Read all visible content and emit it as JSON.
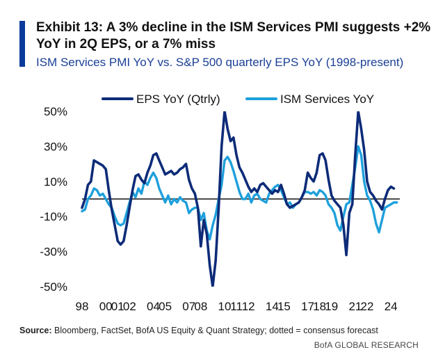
{
  "header": {
    "title": "Exhibit 13: A 3% decline in the ISM Services PMI suggests +2% YoY in 2Q EPS, or a 7% miss",
    "subtitle": "ISM Services PMI YoY vs. S&P 500 quarterly EPS YoY (1998-present)"
  },
  "footer": {
    "source_label": "Source:",
    "source_text": " Bloomberg, FactSet, BofA US Equity & Quant Strategy; dotted = consensus forecast",
    "brand": "BofA GLOBAL RESEARCH"
  },
  "colors": {
    "eps": "#0d2b78",
    "ism": "#1ea0dc",
    "zero": "#111111",
    "accent": "#0a3a9a"
  },
  "chart_data": {
    "type": "line",
    "title": "",
    "xlabel": "",
    "ylabel": "",
    "xlim": [
      1998.0,
      2024.75
    ],
    "ylim": [
      -50,
      50
    ],
    "yticks": [
      50,
      30,
      10,
      -10,
      -30,
      -50
    ],
    "ytick_labels": [
      "50%",
      "30%",
      "10%",
      "-10%",
      "-30%",
      "-50%"
    ],
    "xticks": [
      1998,
      2000,
      2001,
      2002,
      2004,
      2005,
      2007,
      2008,
      2010,
      2011,
      2012,
      2014,
      2015,
      2017,
      2018,
      2019,
      2021,
      2022,
      2024
    ],
    "xtick_labels": [
      "98",
      "00",
      "01",
      "02",
      "04",
      "05",
      "07",
      "08",
      "10",
      "11",
      "12",
      "14",
      "15",
      "17",
      "18",
      "19",
      "21",
      "22",
      "24"
    ],
    "zero_line": true,
    "grid": false,
    "legend": "top",
    "series": [
      {
        "name": "EPS YoY (Qtrly)",
        "color": "#0d2b78",
        "points": [
          [
            1998.0,
            -5
          ],
          [
            1998.25,
            0
          ],
          [
            1998.5,
            8
          ],
          [
            1998.75,
            10
          ],
          [
            1999.0,
            22
          ],
          [
            1999.25,
            21
          ],
          [
            1999.5,
            20
          ],
          [
            1999.75,
            19
          ],
          [
            2000.0,
            17
          ],
          [
            2000.25,
            5
          ],
          [
            2000.5,
            -6
          ],
          [
            2000.75,
            -15
          ],
          [
            2001.0,
            -24
          ],
          [
            2001.25,
            -26
          ],
          [
            2001.5,
            -24
          ],
          [
            2001.75,
            -15
          ],
          [
            2002.0,
            -5
          ],
          [
            2002.25,
            5
          ],
          [
            2002.5,
            13
          ],
          [
            2002.75,
            14
          ],
          [
            2003.0,
            11
          ],
          [
            2003.25,
            9
          ],
          [
            2003.5,
            15
          ],
          [
            2003.75,
            19
          ],
          [
            2004.0,
            25
          ],
          [
            2004.25,
            26
          ],
          [
            2004.5,
            22
          ],
          [
            2004.75,
            18
          ],
          [
            2005.0,
            14
          ],
          [
            2005.25,
            15
          ],
          [
            2005.5,
            16
          ],
          [
            2005.75,
            14
          ],
          [
            2006.0,
            15
          ],
          [
            2006.25,
            17
          ],
          [
            2006.5,
            18
          ],
          [
            2006.75,
            20
          ],
          [
            2007.0,
            11
          ],
          [
            2007.25,
            6
          ],
          [
            2007.5,
            3
          ],
          [
            2007.75,
            -5
          ],
          [
            2008.0,
            -27
          ],
          [
            2008.25,
            -12
          ],
          [
            2008.5,
            -20
          ],
          [
            2008.75,
            -38
          ],
          [
            2009.0,
            -50
          ],
          [
            2009.25,
            -35
          ],
          [
            2009.5,
            -5
          ],
          [
            2009.75,
            30
          ],
          [
            2010.0,
            50
          ],
          [
            2010.25,
            40
          ],
          [
            2010.5,
            33
          ],
          [
            2010.75,
            35
          ],
          [
            2011.0,
            25
          ],
          [
            2011.25,
            18
          ],
          [
            2011.5,
            15
          ],
          [
            2011.75,
            11
          ],
          [
            2012.0,
            7
          ],
          [
            2012.25,
            4
          ],
          [
            2012.5,
            6
          ],
          [
            2012.75,
            4
          ],
          [
            2013.0,
            8
          ],
          [
            2013.25,
            9
          ],
          [
            2013.5,
            7
          ],
          [
            2013.75,
            5
          ],
          [
            2014.0,
            3
          ],
          [
            2014.25,
            5
          ],
          [
            2014.5,
            4
          ],
          [
            2014.75,
            8
          ],
          [
            2015.0,
            3
          ],
          [
            2015.25,
            -3
          ],
          [
            2015.5,
            -5
          ],
          [
            2015.75,
            -4
          ],
          [
            2016.0,
            -3
          ],
          [
            2016.25,
            -2
          ],
          [
            2016.5,
            1
          ],
          [
            2016.75,
            5
          ],
          [
            2017.0,
            15
          ],
          [
            2017.25,
            12
          ],
          [
            2017.5,
            10
          ],
          [
            2017.75,
            15
          ],
          [
            2018.0,
            25
          ],
          [
            2018.25,
            26
          ],
          [
            2018.5,
            22
          ],
          [
            2018.75,
            11
          ],
          [
            2019.0,
            2
          ],
          [
            2019.25,
            -1
          ],
          [
            2019.5,
            -3
          ],
          [
            2019.75,
            -5
          ],
          [
            2020.0,
            -15
          ],
          [
            2020.25,
            -32
          ],
          [
            2020.5,
            -8
          ],
          [
            2020.75,
            -3
          ],
          [
            2021.0,
            25
          ],
          [
            2021.25,
            50
          ],
          [
            2021.5,
            40
          ],
          [
            2021.75,
            28
          ],
          [
            2022.0,
            10
          ],
          [
            2022.25,
            4
          ],
          [
            2022.5,
            2
          ],
          [
            2022.75,
            -1
          ],
          [
            2023.0,
            -3
          ],
          [
            2023.25,
            -6
          ],
          [
            2023.5,
            0
          ],
          [
            2023.75,
            5
          ],
          [
            2024.0,
            7
          ],
          [
            2024.25,
            6
          ]
        ]
      },
      {
        "name": "ISM Services YoY",
        "color": "#1ea0dc",
        "points": [
          [
            1998.0,
            -7
          ],
          [
            1998.25,
            -6
          ],
          [
            1998.5,
            0
          ],
          [
            1998.75,
            2
          ],
          [
            1999.0,
            6
          ],
          [
            1999.25,
            5
          ],
          [
            1999.5,
            2
          ],
          [
            1999.75,
            3
          ],
          [
            2000.0,
            0
          ],
          [
            2000.25,
            -3
          ],
          [
            2000.5,
            -5
          ],
          [
            2000.75,
            -10
          ],
          [
            2001.0,
            -14
          ],
          [
            2001.25,
            -15
          ],
          [
            2001.5,
            -14
          ],
          [
            2001.75,
            -8
          ],
          [
            2002.0,
            -2
          ],
          [
            2002.25,
            4
          ],
          [
            2002.5,
            1
          ],
          [
            2002.75,
            6
          ],
          [
            2003.0,
            3
          ],
          [
            2003.25,
            10
          ],
          [
            2003.5,
            8
          ],
          [
            2003.75,
            12
          ],
          [
            2004.0,
            15
          ],
          [
            2004.25,
            12
          ],
          [
            2004.5,
            6
          ],
          [
            2004.75,
            2
          ],
          [
            2005.0,
            -2
          ],
          [
            2005.25,
            2
          ],
          [
            2005.5,
            -3
          ],
          [
            2005.75,
            0
          ],
          [
            2006.0,
            -2
          ],
          [
            2006.25,
            1
          ],
          [
            2006.5,
            -1
          ],
          [
            2006.75,
            -2
          ],
          [
            2007.0,
            -8
          ],
          [
            2007.25,
            -6
          ],
          [
            2007.5,
            -5
          ],
          [
            2007.75,
            -5
          ],
          [
            2008.0,
            -12
          ],
          [
            2008.25,
            -8
          ],
          [
            2008.5,
            -18
          ],
          [
            2008.75,
            -23
          ],
          [
            2009.0,
            -15
          ],
          [
            2009.25,
            -9
          ],
          [
            2009.5,
            0
          ],
          [
            2009.75,
            8
          ],
          [
            2010.0,
            22
          ],
          [
            2010.25,
            24
          ],
          [
            2010.5,
            21
          ],
          [
            2010.75,
            16
          ],
          [
            2011.0,
            10
          ],
          [
            2011.25,
            4
          ],
          [
            2011.5,
            0
          ],
          [
            2011.75,
            0
          ],
          [
            2012.0,
            3
          ],
          [
            2012.25,
            -2
          ],
          [
            2012.5,
            2
          ],
          [
            2012.75,
            3
          ],
          [
            2013.0,
            0
          ],
          [
            2013.25,
            -1
          ],
          [
            2013.5,
            -2
          ],
          [
            2013.75,
            3
          ],
          [
            2014.0,
            5
          ],
          [
            2014.25,
            7
          ],
          [
            2014.5,
            8
          ],
          [
            2014.75,
            5
          ],
          [
            2015.0,
            1
          ],
          [
            2015.25,
            -3
          ],
          [
            2015.5,
            -2
          ],
          [
            2015.75,
            -5
          ],
          [
            2016.0,
            -3
          ],
          [
            2016.25,
            -2
          ],
          [
            2016.5,
            1
          ],
          [
            2016.75,
            4
          ],
          [
            2017.0,
            4
          ],
          [
            2017.25,
            3
          ],
          [
            2017.5,
            4
          ],
          [
            2017.75,
            2
          ],
          [
            2018.0,
            5
          ],
          [
            2018.25,
            4
          ],
          [
            2018.5,
            2
          ],
          [
            2018.75,
            -3
          ],
          [
            2019.0,
            -5
          ],
          [
            2019.25,
            -8
          ],
          [
            2019.5,
            -15
          ],
          [
            2019.75,
            -18
          ],
          [
            2020.0,
            -10
          ],
          [
            2020.25,
            -3
          ],
          [
            2020.5,
            -2
          ],
          [
            2020.75,
            8
          ],
          [
            2021.0,
            18
          ],
          [
            2021.25,
            30
          ],
          [
            2021.5,
            25
          ],
          [
            2021.75,
            10
          ],
          [
            2022.0,
            2
          ],
          [
            2022.25,
            -1
          ],
          [
            2022.5,
            -6
          ],
          [
            2022.75,
            -14
          ],
          [
            2023.0,
            -19
          ],
          [
            2023.25,
            -12
          ],
          [
            2023.5,
            -5
          ],
          [
            2023.75,
            -4
          ],
          [
            2024.0,
            -3
          ],
          [
            2024.25,
            -2
          ],
          [
            2024.5,
            -2
          ]
        ]
      }
    ]
  }
}
